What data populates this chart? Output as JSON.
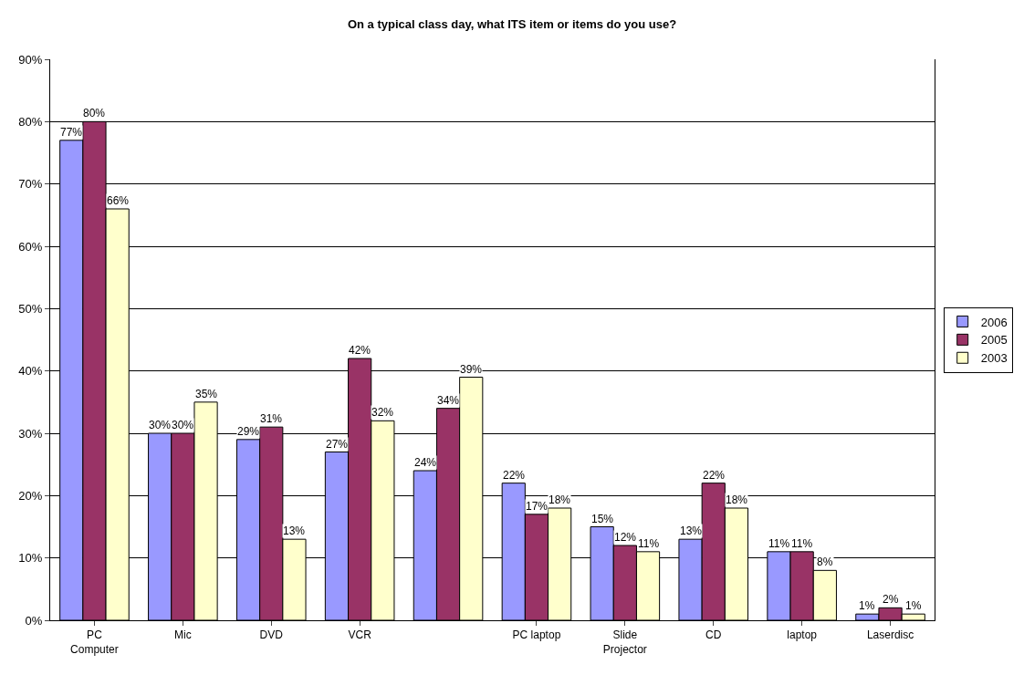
{
  "chart_data": {
    "type": "bar",
    "title": "On a typical class day, what ITS item or items do you use?",
    "categories": [
      "PC\nComputer",
      "Mic",
      "DVD",
      "VCR",
      null,
      "PC laptop",
      "Slide\nProjector",
      "CD",
      "laptop",
      "Laserdisc"
    ],
    "series": [
      {
        "name": "2006",
        "color": "#9999ff",
        "values": [
          77,
          30,
          29,
          27,
          24,
          22,
          15,
          13,
          11,
          1
        ],
        "value_labels": [
          "77%",
          "30%",
          "29%",
          "27%",
          "24%",
          "22%",
          "15%",
          "13%",
          "11%",
          "1%"
        ]
      },
      {
        "name": "2005",
        "color": "#993366",
        "values": [
          80,
          30,
          31,
          42,
          34,
          17,
          12,
          22,
          11,
          2
        ],
        "value_labels": [
          "80%",
          "30%",
          "31%",
          "42%",
          "34%",
          "17%",
          "12%",
          "22%",
          "11%",
          "2%"
        ]
      },
      {
        "name": "2003",
        "color": "#ffffcc",
        "values": [
          66,
          35,
          13,
          32,
          39,
          18,
          11,
          18,
          8,
          1
        ],
        "value_labels": [
          "66%",
          "35%",
          "13%",
          "32%",
          "39%",
          "18%",
          "11%",
          "18%",
          "8%",
          "1%"
        ]
      }
    ],
    "ylim": [
      0,
      90
    ],
    "yticks": [
      {
        "value": 0,
        "label": "0%"
      },
      {
        "value": 10,
        "label": "10%"
      },
      {
        "value": 20,
        "label": "20%"
      },
      {
        "value": 30,
        "label": "30%"
      },
      {
        "value": 40,
        "label": "40%"
      },
      {
        "value": 50,
        "label": "50%"
      },
      {
        "value": 60,
        "label": "60%"
      },
      {
        "value": 70,
        "label": "70%"
      },
      {
        "value": 80,
        "label": "80%"
      },
      {
        "value": 90,
        "label": "90%"
      }
    ],
    "grid": "y",
    "legend": "right"
  }
}
